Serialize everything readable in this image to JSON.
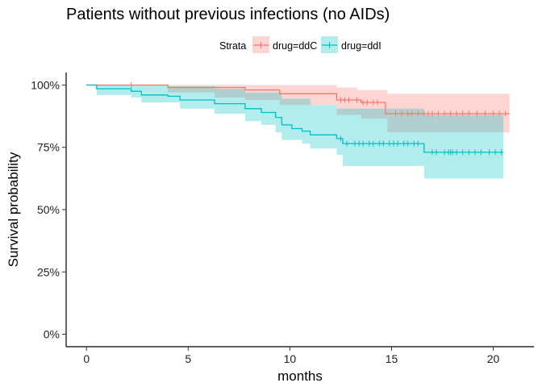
{
  "chart_data": {
    "type": "line",
    "title": "Patients without previous infections (no AIDs)",
    "xlabel": "months",
    "ylabel": "Survival probability",
    "xlim": [
      -1,
      22
    ],
    "ylim": [
      -0.05,
      1.05
    ],
    "x_ticks": [
      0,
      5,
      10,
      15,
      20
    ],
    "y_ticks": [
      0,
      0.25,
      0.5,
      0.75,
      1.0
    ],
    "x_tick_labels": [
      "0",
      "5",
      "10",
      "15",
      "20"
    ],
    "y_tick_labels": [
      "0%",
      "25%",
      "50%",
      "75%",
      "100%"
    ],
    "grid": false,
    "legend": {
      "title": "Strata",
      "placement": "top",
      "entries": [
        "drug=ddC",
        "drug=ddI"
      ]
    },
    "series": [
      {
        "name": "drug=ddC",
        "color": "#F8766D",
        "band_color": "#F8766D",
        "steps": [
          [
            0,
            1.0
          ],
          [
            4.0,
            0.99
          ],
          [
            7.8,
            0.98
          ],
          [
            9.5,
            0.965
          ],
          [
            12.3,
            0.94
          ],
          [
            13.5,
            0.93
          ],
          [
            14.7,
            0.885
          ],
          [
            20.8,
            0.885
          ]
        ],
        "ci_upper": [
          [
            0,
            1.0
          ],
          [
            7.8,
            1.0
          ],
          [
            12.3,
            0.99
          ],
          [
            13.3,
            0.98
          ],
          [
            14.8,
            0.965
          ],
          [
            20.8,
            0.965
          ]
        ],
        "ci_lower": [
          [
            0,
            1.0
          ],
          [
            4.0,
            0.97
          ],
          [
            6.3,
            0.95
          ],
          [
            7.8,
            0.94
          ],
          [
            9.5,
            0.92
          ],
          [
            12.3,
            0.88
          ],
          [
            13.5,
            0.865
          ],
          [
            14.8,
            0.81
          ],
          [
            20.8,
            0.81
          ]
        ],
        "censored": [
          2.2,
          12.5,
          12.7,
          12.9,
          13.3,
          13.6,
          13.8,
          14.1,
          14.3,
          15.2,
          15.5,
          15.8,
          16.0,
          16.3,
          16.6,
          16.8,
          17.0,
          17.3,
          17.6,
          17.9,
          18.2,
          18.5,
          18.8,
          19.2,
          19.6,
          20.0,
          20.3,
          20.6
        ]
      },
      {
        "name": "drug=ddI",
        "color": "#00BFC4",
        "band_color": "#00BFC4",
        "steps": [
          [
            0,
            1.0
          ],
          [
            0.5,
            0.985
          ],
          [
            2.2,
            0.975
          ],
          [
            2.7,
            0.96
          ],
          [
            4.0,
            0.955
          ],
          [
            4.6,
            0.94
          ],
          [
            6.3,
            0.925
          ],
          [
            7.8,
            0.905
          ],
          [
            8.6,
            0.89
          ],
          [
            9.3,
            0.87
          ],
          [
            9.6,
            0.84
          ],
          [
            10.1,
            0.825
          ],
          [
            10.6,
            0.815
          ],
          [
            11.0,
            0.8
          ],
          [
            12.3,
            0.785
          ],
          [
            12.6,
            0.765
          ],
          [
            16.6,
            0.73
          ],
          [
            20.5,
            0.73
          ]
        ],
        "ci_upper": [
          [
            0,
            1.0
          ],
          [
            4.0,
            0.995
          ],
          [
            6.3,
            0.985
          ],
          [
            7.8,
            0.97
          ],
          [
            9.6,
            0.945
          ],
          [
            11.0,
            0.92
          ],
          [
            12.3,
            0.905
          ],
          [
            16.6,
            0.88
          ],
          [
            20.5,
            0.88
          ]
        ],
        "ci_lower": [
          [
            0,
            1.0
          ],
          [
            0.5,
            0.96
          ],
          [
            2.2,
            0.95
          ],
          [
            2.7,
            0.93
          ],
          [
            4.6,
            0.905
          ],
          [
            6.3,
            0.885
          ],
          [
            7.8,
            0.855
          ],
          [
            8.6,
            0.84
          ],
          [
            9.3,
            0.81
          ],
          [
            9.6,
            0.78
          ],
          [
            10.6,
            0.765
          ],
          [
            11.0,
            0.745
          ],
          [
            12.3,
            0.72
          ],
          [
            12.6,
            0.675
          ],
          [
            16.6,
            0.625
          ],
          [
            20.5,
            0.625
          ]
        ],
        "censored": [
          12.5,
          12.8,
          13.2,
          13.4,
          13.6,
          13.9,
          14.1,
          14.4,
          14.6,
          14.9,
          15.1,
          15.3,
          15.6,
          15.8,
          16.1,
          16.3,
          17.0,
          17.2,
          17.6,
          17.8,
          17.9,
          18.0,
          18.2,
          18.5,
          18.8,
          19.1,
          19.4,
          19.8,
          20.1,
          20.4
        ]
      }
    ]
  }
}
